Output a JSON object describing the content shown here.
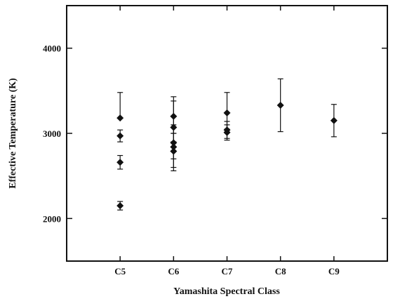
{
  "chart_data": {
    "type": "scatter",
    "title": "",
    "xlabel": "Yamashita Spectral Class",
    "ylabel": "Effective Temperature (K)",
    "categories": [
      "C5",
      "C6",
      "C7",
      "C8",
      "C9"
    ],
    "xlim": [
      0,
      6
    ],
    "ylim": [
      1500,
      4500
    ],
    "yticks": [
      2000,
      3000,
      4000
    ],
    "grid": false,
    "legend": "none",
    "marker": "diamond",
    "color": "#111111",
    "points": [
      {
        "x": "C5",
        "y": 3180,
        "err_low": 3180,
        "err_high": 3480
      },
      {
        "x": "C5",
        "y": 2970,
        "err_low": 2900,
        "err_high": 3040
      },
      {
        "x": "C5",
        "y": 2660,
        "err_low": 2580,
        "err_high": 2740
      },
      {
        "x": "C5",
        "y": 2150,
        "err_low": 2100,
        "err_high": 2200
      },
      {
        "x": "C6",
        "y": 3200,
        "err_low": 3000,
        "err_high": 3430
      },
      {
        "x": "C6",
        "y": 3070,
        "err_low": 2900,
        "err_high": 3380
      },
      {
        "x": "C6",
        "y": 2890,
        "err_low": 2600,
        "err_high": 3100
      },
      {
        "x": "C6",
        "y": 2840,
        "err_low": 2560,
        "err_high": 3000
      },
      {
        "x": "C6",
        "y": 2790,
        "err_low": 2700,
        "err_high": 2900
      },
      {
        "x": "C7",
        "y": 3240,
        "err_low": 3050,
        "err_high": 3480
      },
      {
        "x": "C7",
        "y": 3040,
        "err_low": 2940,
        "err_high": 3140
      },
      {
        "x": "C7",
        "y": 3010,
        "err_low": 2920,
        "err_high": 3100
      },
      {
        "x": "C8",
        "y": 3330,
        "err_low": 3020,
        "err_high": 3640
      },
      {
        "x": "C9",
        "y": 3150,
        "err_low": 2960,
        "err_high": 3340
      }
    ]
  }
}
